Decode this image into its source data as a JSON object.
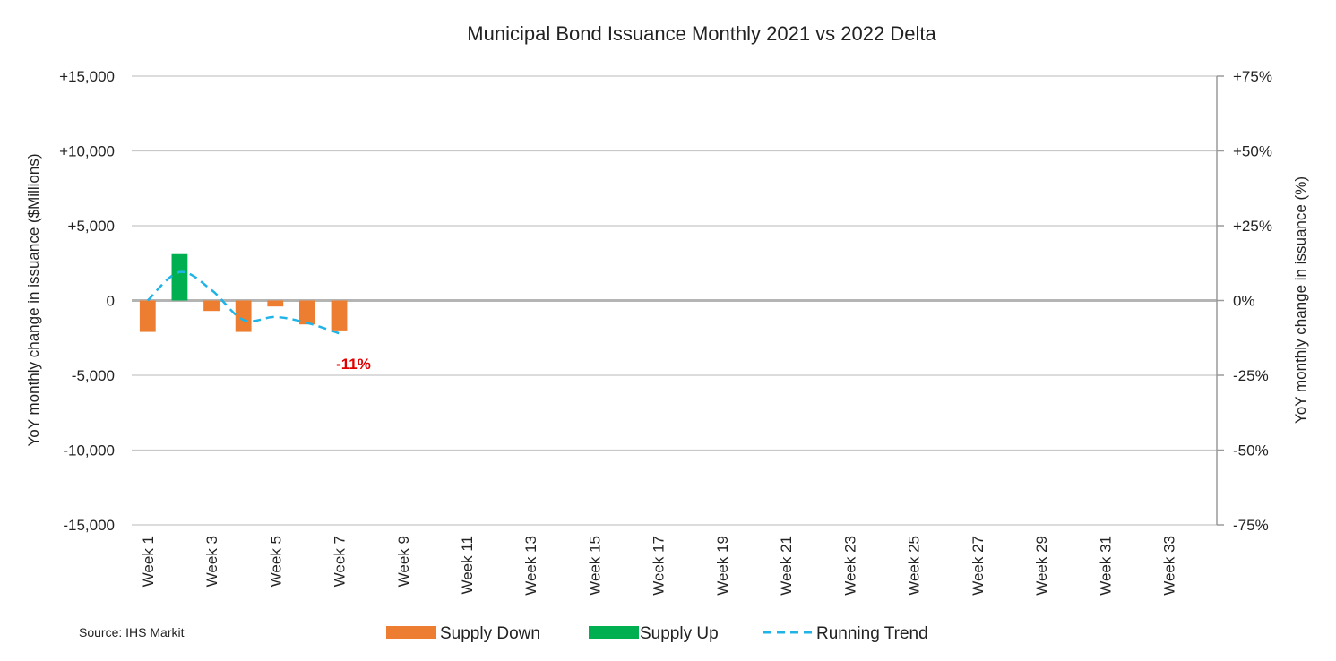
{
  "chart_data": {
    "type": "bar",
    "title": "Municipal Bond Issuance Monthly  2021 vs 2022 Delta",
    "ylabel": "YoY monthly change  in issuance ($Millions)",
    "y2label": "YoY monthly change in issuance (%)",
    "ylim": [
      -15000,
      15000
    ],
    "y2lim": [
      -75,
      75
    ],
    "y_ticks": [
      "+15,000",
      "+10,000",
      "+5,000",
      "0",
      "-5,000",
      "-10,000",
      "-15,000"
    ],
    "y2_ticks": [
      "+75%",
      "+50%",
      "+25%",
      "0%",
      "-25%",
      "-50%",
      "-75%"
    ],
    "grid": true,
    "num_weeks": 34,
    "x_tick_labels": [
      "Week 1",
      "Week 3",
      "Week 5",
      "Week 7",
      "Week 9",
      "Week 11",
      "Week 13",
      "Week 15",
      "Week 17",
      "Week 19",
      "Week 21",
      "Week 23",
      "Week 25",
      "Week 27",
      "Week 29",
      "Week 31",
      "Week 33"
    ],
    "x_tick_weeks": [
      1,
      3,
      5,
      7,
      9,
      11,
      13,
      15,
      17,
      19,
      21,
      23,
      25,
      27,
      29,
      31,
      33
    ],
    "bars": [
      {
        "week": 1,
        "value": -2100,
        "kind": "down"
      },
      {
        "week": 2,
        "value": 3100,
        "kind": "up"
      },
      {
        "week": 3,
        "value": -700,
        "kind": "down"
      },
      {
        "week": 4,
        "value": -2100,
        "kind": "down"
      },
      {
        "week": 5,
        "value": -400,
        "kind": "down"
      },
      {
        "week": 6,
        "value": -1600,
        "kind": "down"
      },
      {
        "week": 7,
        "value": -2000,
        "kind": "down"
      }
    ],
    "trend": [
      {
        "week": 1,
        "pct": 0
      },
      {
        "week": 2,
        "pct": 9.5
      },
      {
        "week": 3,
        "pct": 3.5
      },
      {
        "week": 4,
        "pct": -6.5
      },
      {
        "week": 5,
        "pct": -5.5
      },
      {
        "week": 6,
        "pct": -7.5
      },
      {
        "week": 7,
        "pct": -11
      }
    ],
    "annotation": {
      "text": "-11%",
      "week": 7
    },
    "legend": {
      "placement": "bottom",
      "entries": [
        {
          "name": "Supply Down",
          "color": "#ed7d31"
        },
        {
          "name": "Supply Up",
          "color": "#00b050"
        },
        {
          "name": "Running Trend",
          "color": "#1fb3e6"
        }
      ]
    },
    "source": "Source: IHS Markit",
    "colors": {
      "down": "#ed7d31",
      "up": "#00b050",
      "trend": "#1fb3e6",
      "grid": "#c8c8c8",
      "zero": "#b4b4b4",
      "annotation": "#e00000"
    }
  }
}
